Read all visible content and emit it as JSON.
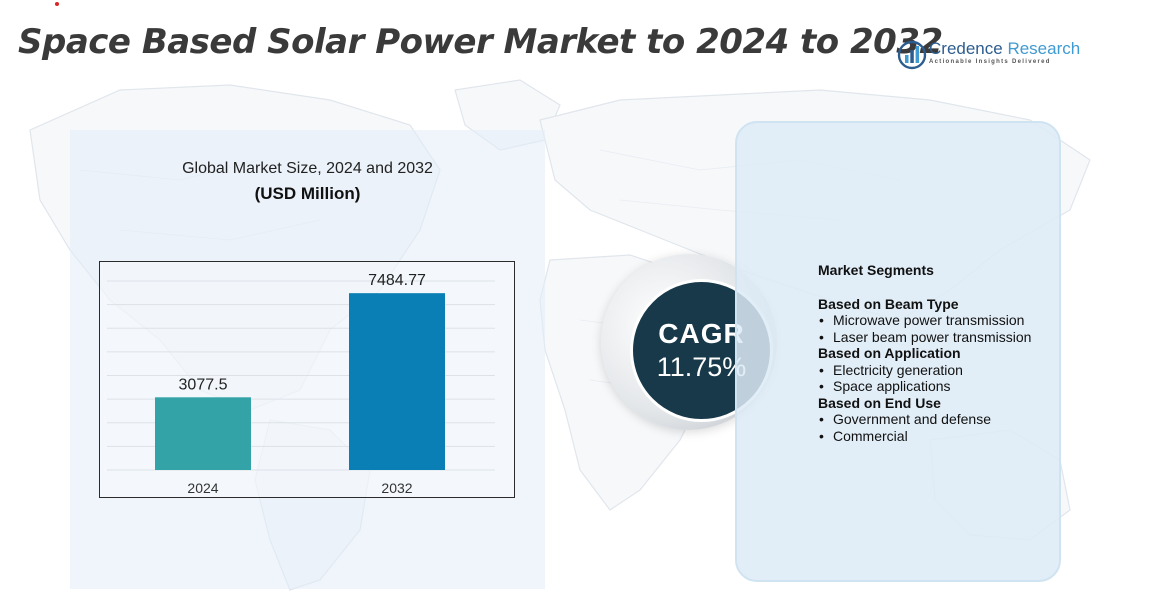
{
  "page": {
    "title": "Space Based Solar Power Market to 2024 to 2032"
  },
  "logo": {
    "name_part1": "Credence",
    "name_part2": "Research",
    "tagline": "Actionable Insights Delivered",
    "icon": "bar-chart-globe-icon"
  },
  "chart_data": {
    "type": "bar",
    "title": "Global Market Size, 2024 and 2032",
    "subtitle": "(USD Million)",
    "categories": [
      "2024",
      "2032"
    ],
    "values": [
      3077.5,
      7484.77
    ],
    "value_labels": [
      "3077.5",
      "7484.77"
    ],
    "colors": [
      "#33a3a7",
      "#0a7fb6"
    ],
    "ylim": [
      0,
      8000
    ],
    "grid": true,
    "legend": "none"
  },
  "cagr": {
    "label": "CAGR",
    "value": "11.75%"
  },
  "segments": {
    "heading": "Market Segments",
    "groups": [
      {
        "title": "Based on Beam Type",
        "items": [
          "Microwave power transmission",
          "Laser beam power transmission"
        ]
      },
      {
        "title": "Based on Application",
        "items": [
          "Electricity generation",
          "Space applications"
        ]
      },
      {
        "title": "Based on End Use",
        "items": [
          "Government and defense",
          "Commercial"
        ]
      }
    ]
  },
  "colors": {
    "title_text": "#3a3a3a",
    "cagr_circle": "#17394a",
    "panel_background": "#e2ecf7",
    "map_lines": "#e3e8ee"
  }
}
